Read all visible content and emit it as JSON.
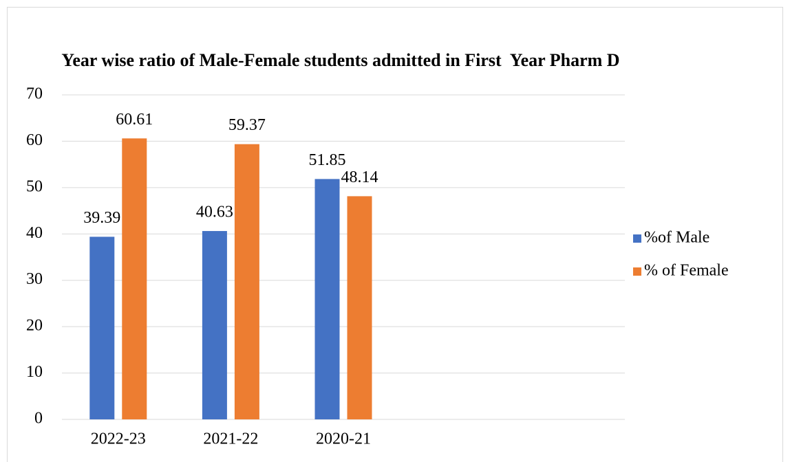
{
  "chart_data": {
    "type": "bar",
    "title": "Year wise ratio of Male-Female students admitted in First  Year Pharm D",
    "categories": [
      "2022-23",
      "2021-22",
      "2020-21",
      null,
      null
    ],
    "series": [
      {
        "name": "%of Male",
        "color": "#4472c4",
        "values": [
          39.39,
          40.63,
          51.85,
          null,
          null
        ]
      },
      {
        "name": "% of Female",
        "color": "#ed7d31",
        "values": [
          60.61,
          59.37,
          48.14,
          null,
          null
        ]
      }
    ],
    "ylim": [
      0,
      70
    ],
    "yticks": [
      0,
      10,
      20,
      30,
      40,
      50,
      60,
      70
    ],
    "grid": true,
    "legend": "right"
  }
}
